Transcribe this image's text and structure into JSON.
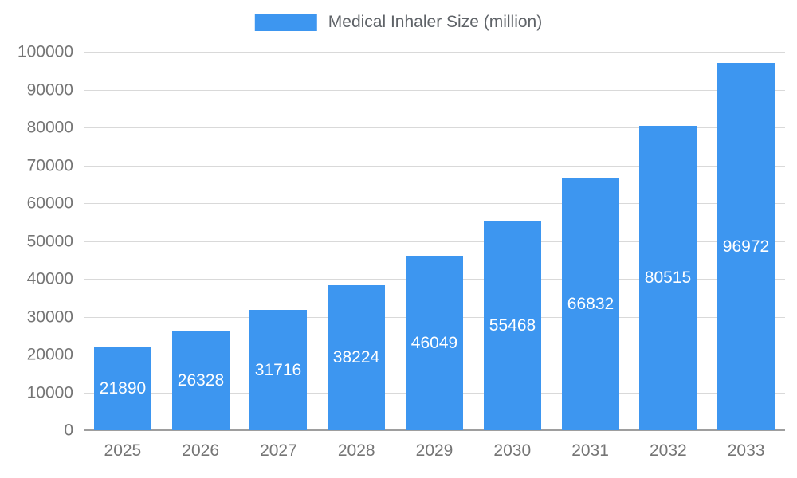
{
  "legend": {
    "label": "Medical Inhaler Size (million)",
    "swatch_color": "#3d96f0"
  },
  "chart_data": {
    "type": "bar",
    "title": "Medical Inhaler Size (million)",
    "categories": [
      "2025",
      "2026",
      "2027",
      "2028",
      "2029",
      "2030",
      "2031",
      "2032",
      "2033"
    ],
    "values": [
      21890,
      26328,
      31716,
      38224,
      46049,
      55468,
      66832,
      80515,
      96972
    ],
    "xlabel": "",
    "ylabel": "",
    "ylim": [
      0,
      100000
    ],
    "ytick_step": 10000,
    "yticks": [
      "0",
      "10000",
      "20000",
      "30000",
      "40000",
      "50000",
      "60000",
      "70000",
      "80000",
      "90000",
      "100000"
    ],
    "grid": true,
    "legend_position": "top-center",
    "bar_color": "#3d96f0",
    "value_label_color": "#ffffff",
    "axis_label_color": "#757575"
  }
}
